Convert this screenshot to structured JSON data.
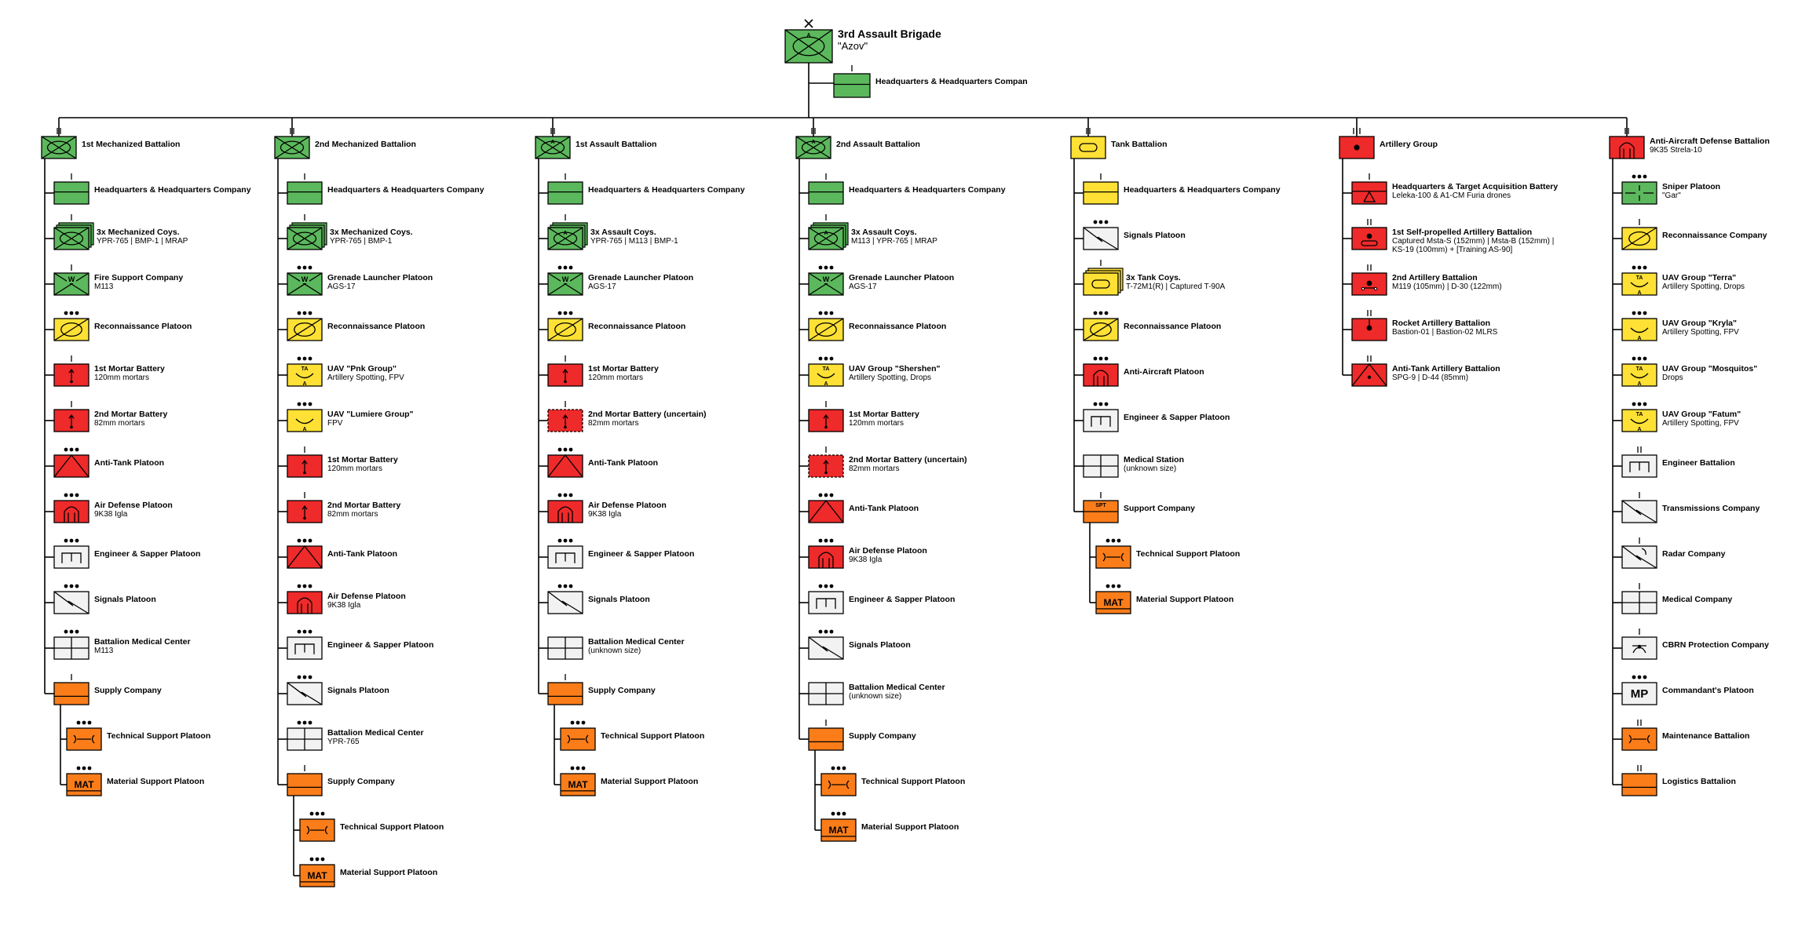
{
  "colors": {
    "green": "#5cb85c",
    "yellow": "#ffe135",
    "red": "#ee2a2a",
    "orange": "#fb7d1a",
    "white": "#f2f2f2",
    "line": "#000000"
  },
  "root": {
    "title": "3rd Assault Brigade",
    "subtitle": "\"Azov\"",
    "echelon": "x",
    "color": "green",
    "symbol": "assault",
    "hq": {
      "label": "Headquarters & Headquarters Compan",
      "echelon": "I",
      "color": "green",
      "symbol": "hq"
    }
  },
  "columns": [
    {
      "head": {
        "label": "1st Mechanized Battalion",
        "echelon": "II",
        "color": "green",
        "symbol": "mech"
      },
      "items": [
        {
          "label": "Headquarters & Headquarters Company",
          "echelon": "I",
          "color": "green",
          "symbol": "hq"
        },
        {
          "label": "3x Mechanized Coys.",
          "sub": "YPR-765 | BMP-1 | MRAP",
          "echelon": "I",
          "color": "green",
          "symbol": "mech",
          "stack": true
        },
        {
          "label": "Fire Support Company",
          "sub": "M113",
          "echelon": "I",
          "color": "green",
          "symbol": "fire"
        },
        {
          "label": "Reconnaissance Platoon",
          "echelon": "...",
          "color": "yellow",
          "symbol": "recon"
        },
        {
          "label": "1st Mortar Battery",
          "sub": "120mm mortars",
          "echelon": "I",
          "color": "red",
          "symbol": "mortar"
        },
        {
          "label": "2nd Mortar Battery",
          "sub": "82mm mortars",
          "echelon": "I",
          "color": "red",
          "symbol": "mortar"
        },
        {
          "label": "Anti-Tank Platoon",
          "echelon": "...",
          "color": "red",
          "symbol": "at"
        },
        {
          "label": "Air Defense Platoon",
          "sub": "9K38 Igla",
          "echelon": "...",
          "color": "red",
          "symbol": "ad"
        },
        {
          "label": "Engineer & Sapper Platoon",
          "echelon": "...",
          "color": "white",
          "symbol": "eng"
        },
        {
          "label": "Signals Platoon",
          "echelon": "...",
          "color": "white",
          "symbol": "sig"
        },
        {
          "label": "Battalion Medical Center",
          "sub": "M113",
          "echelon": "...",
          "color": "white",
          "symbol": "med"
        },
        {
          "label": "Supply Company",
          "echelon": "I",
          "color": "orange",
          "symbol": "supply",
          "children": [
            {
              "label": "Technical Support Platoon",
              "echelon": "...",
              "color": "orange",
              "symbol": "maint"
            },
            {
              "label": "Material Support Platoon",
              "echelon": "...",
              "color": "orange",
              "symbol": "mat",
              "text": "MAT"
            }
          ]
        }
      ]
    },
    {
      "head": {
        "label": "2nd Mechanized Battalion",
        "echelon": "II",
        "color": "green",
        "symbol": "mech"
      },
      "items": [
        {
          "label": "Headquarters & Headquarters Company",
          "echelon": "I",
          "color": "green",
          "symbol": "hq"
        },
        {
          "label": "3x Mechanized Coys.",
          "sub": "YPR-765 | BMP-1",
          "echelon": "I",
          "color": "green",
          "symbol": "mech",
          "stack": true
        },
        {
          "label": "Grenade Launcher Platoon",
          "sub": "AGS-17",
          "echelon": "...",
          "color": "green",
          "symbol": "fire"
        },
        {
          "label": "Reconnaissance Platoon",
          "echelon": "...",
          "color": "yellow",
          "symbol": "recon"
        },
        {
          "label": "UAV \"Pnk Group\"",
          "sub": "Artillery Spotting, FPV",
          "echelon": "...",
          "color": "yellow",
          "symbol": "uavta"
        },
        {
          "label": "UAV \"Lumiere Group\"",
          "sub": "FPV",
          "echelon": "...",
          "color": "yellow",
          "symbol": "uav"
        },
        {
          "label": "1st Mortar Battery",
          "sub": "120mm mortars",
          "echelon": "I",
          "color": "red",
          "symbol": "mortar"
        },
        {
          "label": "2nd Mortar Battery",
          "sub": "82mm mortars",
          "echelon": "I",
          "color": "red",
          "symbol": "mortar"
        },
        {
          "label": "Anti-Tank Platoon",
          "echelon": "...",
          "color": "red",
          "symbol": "at"
        },
        {
          "label": "Air Defense Platoon",
          "sub": "9K38 Igla",
          "echelon": "...",
          "color": "red",
          "symbol": "ad"
        },
        {
          "label": "Engineer & Sapper Platoon",
          "echelon": "...",
          "color": "white",
          "symbol": "eng"
        },
        {
          "label": "Signals Platoon",
          "echelon": "...",
          "color": "white",
          "symbol": "sig"
        },
        {
          "label": "Battalion Medical Center",
          "sub": "YPR-765",
          "echelon": "...",
          "color": "white",
          "symbol": "med"
        },
        {
          "label": "Supply Company",
          "echelon": "I",
          "color": "orange",
          "symbol": "supply",
          "children": [
            {
              "label": "Technical Support Platoon",
              "echelon": "...",
              "color": "orange",
              "symbol": "maint"
            },
            {
              "label": "Material Support Platoon",
              "echelon": "...",
              "color": "orange",
              "symbol": "mat",
              "text": "MAT"
            }
          ]
        }
      ]
    },
    {
      "head": {
        "label": "1st Assault Battalion",
        "echelon": "II",
        "color": "green",
        "symbol": "assault"
      },
      "items": [
        {
          "label": "Headquarters & Headquarters Company",
          "echelon": "I",
          "color": "green",
          "symbol": "hq"
        },
        {
          "label": "3x Assault Coys.",
          "sub": "YPR-765 | M113 | BMP-1",
          "echelon": "I",
          "color": "green",
          "symbol": "assault",
          "stack": true
        },
        {
          "label": "Grenade Launcher Platoon",
          "sub": "AGS-17",
          "echelon": "...",
          "color": "green",
          "symbol": "fire"
        },
        {
          "label": "Reconnaissance Platoon",
          "echelon": "...",
          "color": "yellow",
          "symbol": "recon"
        },
        {
          "label": "1st Mortar Battery",
          "sub": "120mm mortars",
          "echelon": "I",
          "color": "red",
          "symbol": "mortar"
        },
        {
          "label": "2nd Mortar Battery (uncertain)",
          "sub": "82mm mortars",
          "echelon": "I",
          "color": "red",
          "symbol": "mortar",
          "dashed": true
        },
        {
          "label": "Anti-Tank Platoon",
          "echelon": "...",
          "color": "red",
          "symbol": "at"
        },
        {
          "label": "Air Defense Platoon",
          "sub": "9K38 Igla",
          "echelon": "...",
          "color": "red",
          "symbol": "ad"
        },
        {
          "label": "Engineer & Sapper Platoon",
          "echelon": "...",
          "color": "white",
          "symbol": "eng"
        },
        {
          "label": "Signals Platoon",
          "echelon": "...",
          "color": "white",
          "symbol": "sig"
        },
        {
          "label": "Battalion Medical Center",
          "sub": "(unknown size)",
          "echelon": "",
          "color": "white",
          "symbol": "med"
        },
        {
          "label": "Supply Company",
          "echelon": "I",
          "color": "orange",
          "symbol": "supply",
          "children": [
            {
              "label": "Technical Support Platoon",
              "echelon": "...",
              "color": "orange",
              "symbol": "maint"
            },
            {
              "label": "Material Support Platoon",
              "echelon": "...",
              "color": "orange",
              "symbol": "mat",
              "text": "MAT"
            }
          ]
        }
      ]
    },
    {
      "head": {
        "label": "2nd Assault Battalion",
        "echelon": "II",
        "color": "green",
        "symbol": "assault"
      },
      "items": [
        {
          "label": "Headquarters & Headquarters Company",
          "echelon": "I",
          "color": "green",
          "symbol": "hq"
        },
        {
          "label": "3x Assault Coys.",
          "sub": "M113 | YPR-765 | MRAP",
          "echelon": "I",
          "color": "green",
          "symbol": "assault",
          "stack": true
        },
        {
          "label": "Grenade Launcher Platoon",
          "sub": "AGS-17",
          "echelon": "...",
          "color": "green",
          "symbol": "fire"
        },
        {
          "label": "Reconnaissance Platoon",
          "echelon": "...",
          "color": "yellow",
          "symbol": "recon"
        },
        {
          "label": "UAV Group \"Shershen\"",
          "sub": "Artillery Spotting, Drops",
          "echelon": "...",
          "color": "yellow",
          "symbol": "uavta"
        },
        {
          "label": "1st Mortar Battery",
          "sub": "120mm mortars",
          "echelon": "I",
          "color": "red",
          "symbol": "mortar"
        },
        {
          "label": "2nd Mortar Battery (uncertain)",
          "sub": "82mm mortars",
          "echelon": "I",
          "color": "red",
          "symbol": "mortar",
          "dashed": true
        },
        {
          "label": "Anti-Tank Platoon",
          "echelon": "...",
          "color": "red",
          "symbol": "at"
        },
        {
          "label": "Air Defense Platoon",
          "sub": "9K38 Igla",
          "echelon": "...",
          "color": "red",
          "symbol": "ad"
        },
        {
          "label": "Engineer & Sapper Platoon",
          "echelon": "...",
          "color": "white",
          "symbol": "eng"
        },
        {
          "label": "Signals Platoon",
          "echelon": "...",
          "color": "white",
          "symbol": "sig"
        },
        {
          "label": "Battalion Medical Center",
          "sub": "(unknown size)",
          "echelon": "",
          "color": "white",
          "symbol": "med"
        },
        {
          "label": "Supply Company",
          "echelon": "I",
          "color": "orange",
          "symbol": "supply",
          "children": [
            {
              "label": "Technical Support Platoon",
              "echelon": "...",
              "color": "orange",
              "symbol": "maint"
            },
            {
              "label": "Material Support Platoon",
              "echelon": "...",
              "color": "orange",
              "symbol": "mat",
              "text": "MAT"
            }
          ]
        }
      ]
    },
    {
      "head": {
        "label": "Tank Battalion",
        "echelon": "II",
        "color": "yellow",
        "symbol": "tank"
      },
      "items": [
        {
          "label": "Headquarters & Headquarters Company",
          "echelon": "I",
          "color": "yellow",
          "symbol": "hq"
        },
        {
          "label": "Signals Platoon",
          "echelon": "...",
          "color": "white",
          "symbol": "sig"
        },
        {
          "label": "3x Tank Coys.",
          "sub": "T-72M1(R) | Captured T-90A",
          "echelon": "I",
          "color": "yellow",
          "symbol": "tank",
          "stack": true
        },
        {
          "label": "Reconnaissance Platoon",
          "echelon": "...",
          "color": "yellow",
          "symbol": "recon"
        },
        {
          "label": "Anti-Aircraft Platoon",
          "echelon": "...",
          "color": "red",
          "symbol": "ad"
        },
        {
          "label": "Engineer & Sapper Platoon",
          "echelon": "...",
          "color": "white",
          "symbol": "eng"
        },
        {
          "label": "Medical Station",
          "sub": "(unknown size)",
          "echelon": "",
          "color": "white",
          "symbol": "med"
        },
        {
          "label": "Support Company",
          "echelon": "I",
          "color": "orange",
          "symbol": "spt",
          "text": "SPT",
          "children": [
            {
              "label": "Technical Support Platoon",
              "echelon": "...",
              "color": "orange",
              "symbol": "maint"
            },
            {
              "label": "Material Support Platoon",
              "echelon": "...",
              "color": "orange",
              "symbol": "mat",
              "text": "MAT"
            }
          ]
        }
      ]
    },
    {
      "head": {
        "label": "Artillery Group",
        "echelon": "III",
        "color": "red",
        "symbol": "arty"
      },
      "items": [
        {
          "label": "Headquarters & Target Acquisition Battery",
          "sub": "Leleka-100 & A1-CM Furia drones",
          "echelon": "I",
          "color": "red",
          "symbol": "hqta"
        },
        {
          "label": "1st Self-propelled Artillery Battalion",
          "sub": "Captured Msta-S (152mm) | Msta-B (152mm) |",
          "sub2": "KS-19 (100mm) + [Training AS-90]",
          "echelon": "II",
          "color": "red",
          "symbol": "sparty"
        },
        {
          "label": "2nd Artillery Battalion",
          "sub": "M119 (105mm) | D-30 (122mm)",
          "echelon": "II",
          "color": "red",
          "symbol": "towed"
        },
        {
          "label": "Rocket Artillery Battalion",
          "sub": "Bastion-01 | Bastion-02 MLRS",
          "echelon": "II",
          "color": "red",
          "symbol": "rocket"
        },
        {
          "label": "Anti-Tank Artillery Battalion",
          "sub": "SPG-9 | D-44 (85mm)",
          "echelon": "II",
          "color": "red",
          "symbol": "atart"
        }
      ]
    },
    {
      "head": {
        "label": "Anti-Aircraft Defense Battalion",
        "sub": "9K35 Strela-10",
        "echelon": "II",
        "color": "red",
        "symbol": "ad"
      },
      "items": [
        {
          "label": "Sniper Platoon",
          "sub": "\"Gar\"",
          "echelon": "...",
          "color": "green",
          "symbol": "sniper"
        },
        {
          "label": "Reconnaissance Company",
          "echelon": "I",
          "color": "yellow",
          "symbol": "recon"
        },
        {
          "label": "UAV Group \"Terra\"",
          "sub": "Artillery Spotting, Drops",
          "echelon": "...",
          "color": "yellow",
          "symbol": "uavta"
        },
        {
          "label": "UAV Group \"Kryla\"",
          "sub": "Artillery Spotting, FPV",
          "echelon": "...",
          "color": "yellow",
          "symbol": "uav"
        },
        {
          "label": "UAV Group \"Mosquitos\"",
          "sub": "Drops",
          "echelon": "...",
          "color": "yellow",
          "symbol": "uavta"
        },
        {
          "label": "UAV Group \"Fatum\"",
          "sub": "Artillery Spotting, FPV",
          "echelon": "...",
          "color": "yellow",
          "symbol": "uavta"
        },
        {
          "label": "Engineer Battalion",
          "echelon": "II",
          "color": "white",
          "symbol": "eng"
        },
        {
          "label": "Transmissions Company",
          "echelon": "I",
          "color": "white",
          "symbol": "sig"
        },
        {
          "label": "Radar Company",
          "echelon": "I",
          "color": "white",
          "symbol": "radar"
        },
        {
          "label": "Medical Company",
          "echelon": "I",
          "color": "white",
          "symbol": "med"
        },
        {
          "label": "CBRN Protection Company",
          "echelon": "I",
          "color": "white",
          "symbol": "cbrn"
        },
        {
          "label": "Commandant's Platoon",
          "echelon": "...",
          "color": "white",
          "symbol": "mp",
          "text": "MP"
        },
        {
          "label": "Maintenance Battalion",
          "echelon": "II",
          "color": "orange",
          "symbol": "maint"
        },
        {
          "label": "Logistics Battalion",
          "echelon": "II",
          "color": "orange",
          "symbol": "supply"
        }
      ]
    }
  ]
}
